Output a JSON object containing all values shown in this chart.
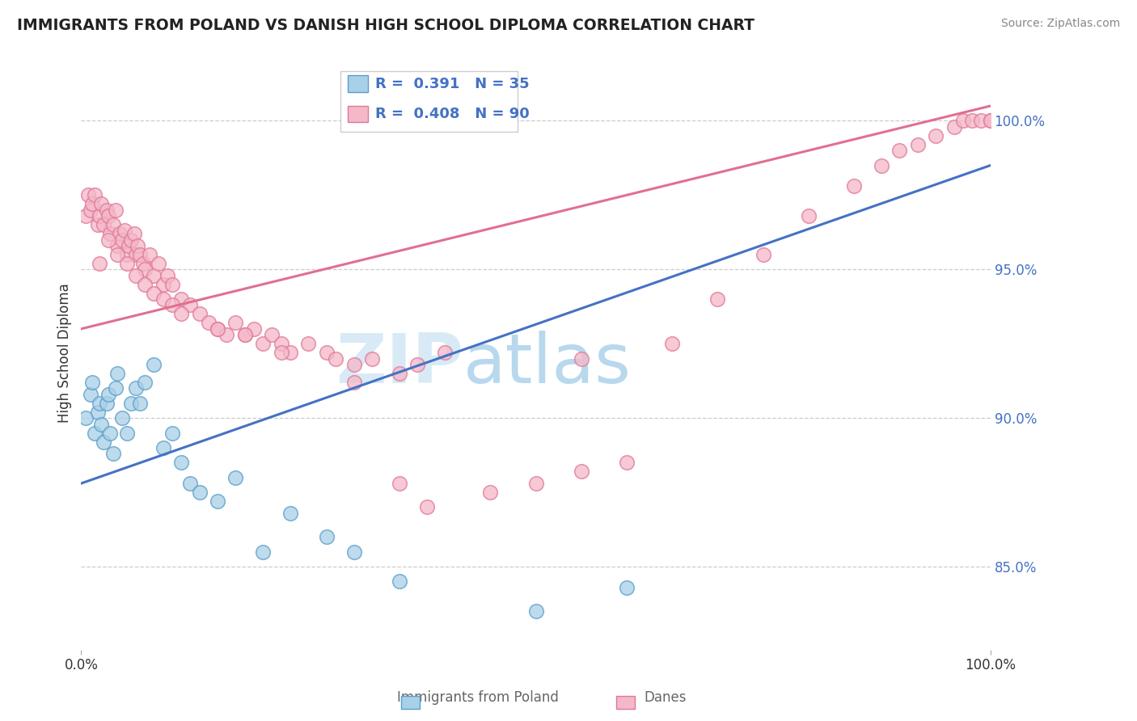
{
  "title": "IMMIGRANTS FROM POLAND VS DANISH HIGH SCHOOL DIPLOMA CORRELATION CHART",
  "source": "Source: ZipAtlas.com",
  "ylabel": "High School Diploma",
  "ytick_labels": [
    "85.0%",
    "90.0%",
    "95.0%",
    "100.0%"
  ],
  "ytick_values": [
    0.85,
    0.9,
    0.95,
    1.0
  ],
  "xlim": [
    0.0,
    1.0
  ],
  "ylim": [
    0.822,
    1.022
  ],
  "legend_blue_R": "0.391",
  "legend_blue_N": "35",
  "legend_pink_R": "0.408",
  "legend_pink_N": "90",
  "legend_labels": [
    "Immigrants from Poland",
    "Danes"
  ],
  "blue_fill": "#a8d0e8",
  "pink_fill": "#f4b8c8",
  "blue_edge": "#5a9fc8",
  "pink_edge": "#e07898",
  "blue_line": "#4472c4",
  "pink_line": "#e07090",
  "watermark_color": "#d8eaf5",
  "blue_line_start_y": 0.878,
  "blue_line_end_y": 0.985,
  "pink_line_start_y": 0.93,
  "pink_line_end_y": 1.005,
  "blue_x": [
    0.005,
    0.01,
    0.012,
    0.015,
    0.018,
    0.02,
    0.022,
    0.025,
    0.028,
    0.03,
    0.032,
    0.035,
    0.038,
    0.04,
    0.045,
    0.05,
    0.055,
    0.06,
    0.065,
    0.07,
    0.08,
    0.09,
    0.1,
    0.11,
    0.12,
    0.13,
    0.15,
    0.17,
    0.2,
    0.23,
    0.27,
    0.3,
    0.35,
    0.5,
    0.6
  ],
  "blue_y": [
    0.9,
    0.908,
    0.912,
    0.895,
    0.902,
    0.905,
    0.898,
    0.892,
    0.905,
    0.908,
    0.895,
    0.888,
    0.91,
    0.915,
    0.9,
    0.895,
    0.905,
    0.91,
    0.905,
    0.912,
    0.918,
    0.89,
    0.895,
    0.885,
    0.878,
    0.875,
    0.872,
    0.88,
    0.855,
    0.868,
    0.86,
    0.855,
    0.845,
    0.835,
    0.843
  ],
  "pink_x": [
    0.005,
    0.008,
    0.01,
    0.012,
    0.015,
    0.018,
    0.02,
    0.022,
    0.025,
    0.028,
    0.03,
    0.032,
    0.035,
    0.038,
    0.04,
    0.042,
    0.045,
    0.048,
    0.05,
    0.052,
    0.055,
    0.058,
    0.06,
    0.062,
    0.065,
    0.068,
    0.07,
    0.075,
    0.08,
    0.085,
    0.09,
    0.095,
    0.1,
    0.11,
    0.12,
    0.13,
    0.14,
    0.15,
    0.16,
    0.17,
    0.18,
    0.19,
    0.2,
    0.21,
    0.22,
    0.23,
    0.25,
    0.27,
    0.28,
    0.3,
    0.32,
    0.35,
    0.37,
    0.4,
    0.55,
    0.65,
    0.7,
    0.75,
    0.8,
    0.85,
    0.88,
    0.9,
    0.92,
    0.94,
    0.96,
    0.97,
    0.98,
    0.99,
    1.0,
    1.0,
    0.02,
    0.03,
    0.04,
    0.05,
    0.06,
    0.07,
    0.08,
    0.09,
    0.1,
    0.11,
    0.15,
    0.18,
    0.22,
    0.3,
    0.35,
    0.38,
    0.45,
    0.5,
    0.55,
    0.6
  ],
  "pink_y": [
    0.968,
    0.975,
    0.97,
    0.972,
    0.975,
    0.965,
    0.968,
    0.972,
    0.965,
    0.97,
    0.968,
    0.962,
    0.965,
    0.97,
    0.958,
    0.962,
    0.96,
    0.963,
    0.955,
    0.958,
    0.96,
    0.962,
    0.955,
    0.958,
    0.955,
    0.952,
    0.95,
    0.955,
    0.948,
    0.952,
    0.945,
    0.948,
    0.945,
    0.94,
    0.938,
    0.935,
    0.932,
    0.93,
    0.928,
    0.932,
    0.928,
    0.93,
    0.925,
    0.928,
    0.925,
    0.922,
    0.925,
    0.922,
    0.92,
    0.918,
    0.92,
    0.915,
    0.918,
    0.922,
    0.92,
    0.925,
    0.94,
    0.955,
    0.968,
    0.978,
    0.985,
    0.99,
    0.992,
    0.995,
    0.998,
    1.0,
    1.0,
    1.0,
    1.0,
    1.0,
    0.952,
    0.96,
    0.955,
    0.952,
    0.948,
    0.945,
    0.942,
    0.94,
    0.938,
    0.935,
    0.93,
    0.928,
    0.922,
    0.912,
    0.878,
    0.87,
    0.875,
    0.878,
    0.882,
    0.885
  ]
}
